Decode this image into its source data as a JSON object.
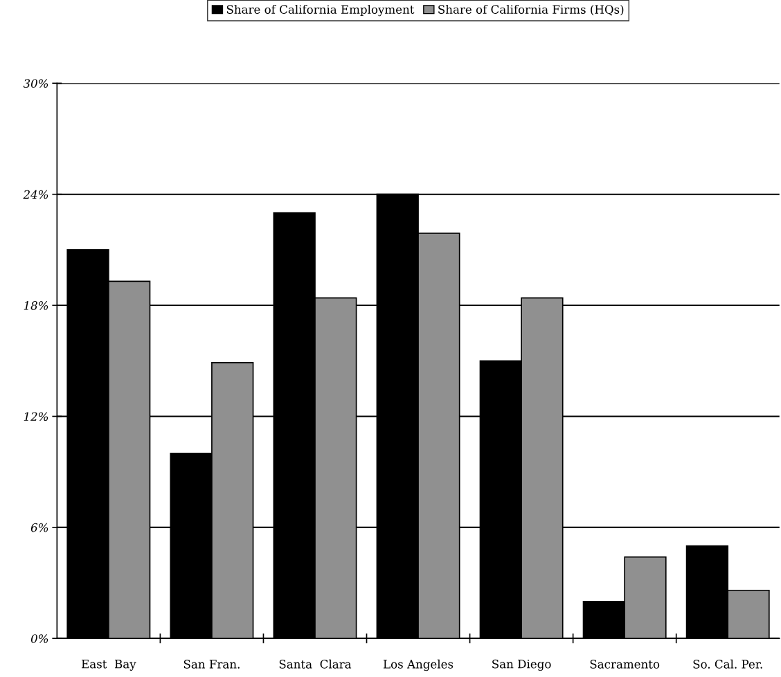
{
  "chart_data": {
    "type": "bar",
    "categories": [
      "East  Bay",
      "San Fran.",
      "Santa  Clara",
      "Los Angeles",
      "San Diego",
      "Sacramento",
      "So. Cal. Per."
    ],
    "series": [
      {
        "name": "Share of California Employment",
        "color": "#000000",
        "values": [
          21.0,
          10.0,
          23.0,
          24.0,
          15.0,
          2.0,
          5.0
        ]
      },
      {
        "name": "Share of California Firms (HQs)",
        "color": "#909090",
        "values": [
          19.3,
          14.9,
          18.4,
          21.9,
          18.4,
          4.4,
          2.6
        ]
      }
    ],
    "ylim": [
      0,
      30
    ],
    "yticks": [
      {
        "value": 0,
        "label": "0%"
      },
      {
        "value": 6,
        "label": "6%"
      },
      {
        "value": 12,
        "label": "12%"
      },
      {
        "value": 18,
        "label": "18%"
      },
      {
        "value": 24,
        "label": "24%"
      },
      {
        "value": 30,
        "label": "30%"
      }
    ],
    "grid": "y",
    "legend": "top"
  }
}
